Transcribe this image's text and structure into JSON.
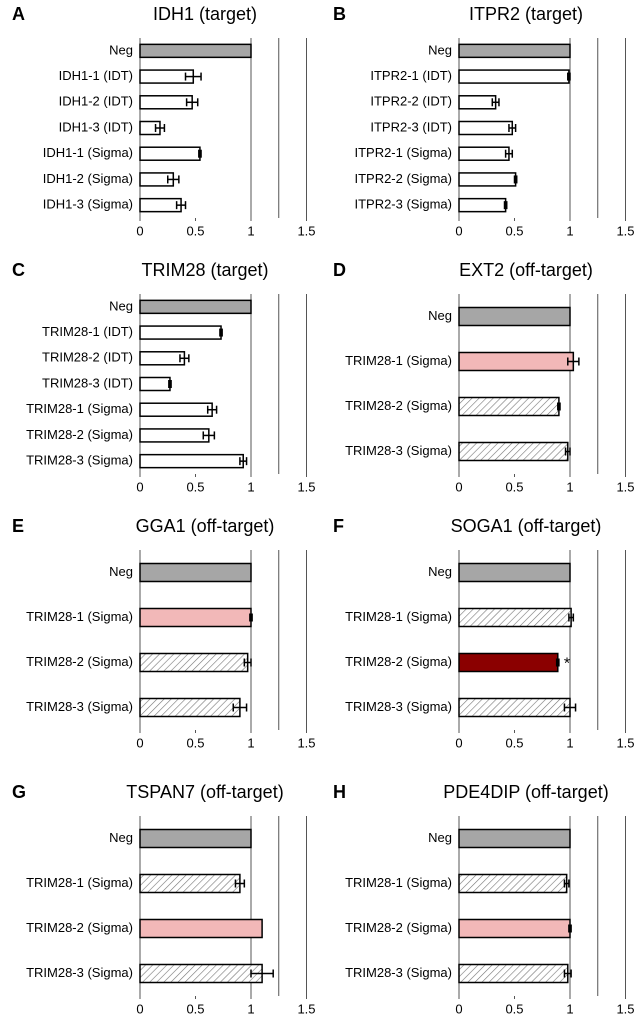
{
  "chart_data": [
    {
      "type": "bar",
      "label": "A",
      "title": "IDH1 (target)",
      "categories": [
        "Neg",
        "IDH1-1 (IDT)",
        "IDH1-2 (IDT)",
        "IDH1-3 (IDT)",
        "IDH1-1 (Sigma)",
        "IDH1-2 (Sigma)",
        "IDH1-3 (Sigma)"
      ],
      "values": [
        1,
        0.48,
        0.47,
        0.18,
        0.54,
        0.3,
        0.37
      ],
      "errors": [
        null,
        0.07,
        0.05,
        0.04,
        0.01,
        0.05,
        0.04
      ],
      "colors": [
        "#a6a6a6",
        "#ffffff",
        "#ffffff",
        "#ffffff",
        "#ffffff",
        "#ffffff",
        "#ffffff"
      ],
      "xlim": [
        0,
        1.5
      ],
      "xticks": [
        0,
        0.5,
        1,
        1.5
      ],
      "grid_lines": [
        1,
        1.25,
        1.5
      ]
    },
    {
      "type": "bar",
      "label": "B",
      "title": "ITPR2 (target)",
      "categories": [
        "Neg",
        "ITPR2-1 (IDT)",
        "ITPR2-2 (IDT)",
        "ITPR2-3 (IDT)",
        "ITPR2-1 (Sigma)",
        "ITPR2-2 (Sigma)",
        "ITPR2-3 (Sigma)"
      ],
      "values": [
        1,
        0.99,
        0.33,
        0.48,
        0.45,
        0.51,
        0.42
      ],
      "errors": [
        null,
        0.01,
        0.03,
        0.03,
        0.03,
        0.01,
        0.01
      ],
      "colors": [
        "#a6a6a6",
        "#ffffff",
        "#ffffff",
        "#ffffff",
        "#ffffff",
        "#ffffff",
        "#ffffff"
      ],
      "xlim": [
        0,
        1.5
      ],
      "xticks": [
        0,
        0.5,
        1,
        1.5
      ],
      "grid_lines": [
        1,
        1.25,
        1.5
      ]
    },
    {
      "type": "bar",
      "label": "C",
      "title": "TRIM28 (target)",
      "categories": [
        "Neg",
        "TRIM28-1 (IDT)",
        "TRIM28-2 (IDT)",
        "TRIM28-3 (IDT)",
        "TRIM28-1 (Sigma)",
        "TRIM28-2 (Sigma)",
        "TRIM28-3 (Sigma)"
      ],
      "values": [
        1,
        0.73,
        0.4,
        0.27,
        0.65,
        0.62,
        0.93
      ],
      "errors": [
        null,
        0.01,
        0.04,
        0.01,
        0.04,
        0.05,
        0.03
      ],
      "colors": [
        "#a6a6a6",
        "#ffffff",
        "#ffffff",
        "#ffffff",
        "#ffffff",
        "#ffffff",
        "#ffffff"
      ],
      "xlim": [
        0,
        1.5
      ],
      "xticks": [
        0,
        0.5,
        1,
        1.5
      ],
      "grid_lines": [
        1,
        1.25,
        1.5
      ]
    },
    {
      "type": "bar",
      "label": "D",
      "title": "EXT2 (off-target)",
      "categories": [
        "Neg",
        "TRIM28-1 (Sigma)",
        "TRIM28-2 (Sigma)",
        "TRIM28-3 (Sigma)"
      ],
      "values": [
        1,
        1.03,
        0.9,
        0.98
      ],
      "errors": [
        null,
        0.05,
        0.01,
        0.02
      ],
      "colors": [
        "#a6a6a6",
        "#f2b8b8",
        "hatch",
        "hatch"
      ],
      "xlim": [
        0,
        1.5
      ],
      "xticks": [
        0,
        0.5,
        1,
        1.5
      ],
      "grid_lines": [
        1,
        1.25,
        1.5
      ]
    },
    {
      "type": "bar",
      "label": "E",
      "title": "GGA1 (off-target)",
      "categories": [
        "Neg",
        "TRIM28-1 (Sigma)",
        "TRIM28-2 (Sigma)",
        "TRIM28-3 (Sigma)"
      ],
      "values": [
        1,
        1,
        0.97,
        0.9
      ],
      "errors": [
        null,
        0.01,
        0.03,
        0.06
      ],
      "colors": [
        "#a6a6a6",
        "#f2b8b8",
        "hatch",
        "hatch"
      ],
      "xlim": [
        0,
        1.5
      ],
      "xticks": [
        0,
        0.5,
        1,
        1.5
      ],
      "grid_lines": [
        1,
        1.25,
        1.5
      ]
    },
    {
      "type": "bar",
      "label": "F",
      "title": "SOGA1 (off-target)",
      "categories": [
        "Neg",
        "TRIM28-1 (Sigma)",
        "TRIM28-2 (Sigma)",
        "TRIM28-3 (Sigma)"
      ],
      "values": [
        1,
        1.01,
        0.89,
        1
      ],
      "errors": [
        null,
        0.02,
        0.01,
        0.05
      ],
      "colors": [
        "#a6a6a6",
        "hatch",
        "#8b0000",
        "hatch"
      ],
      "xlim": [
        0,
        1.5
      ],
      "xticks": [
        0,
        0.5,
        1,
        1.5
      ],
      "grid_lines": [
        1,
        1.25,
        1.5
      ],
      "annotations": [
        {
          "text": "*",
          "category": "TRIM28-2 (Sigma)"
        }
      ]
    },
    {
      "type": "bar",
      "label": "G",
      "title": "TSPAN7 (off-target)",
      "categories": [
        "Neg",
        "TRIM28-1 (Sigma)",
        "TRIM28-2 (Sigma)",
        "TRIM28-3 (Sigma)"
      ],
      "values": [
        1,
        0.9,
        1.1,
        1.1
      ],
      "errors": [
        null,
        0.04,
        null,
        0.1
      ],
      "colors": [
        "#a6a6a6",
        "hatch",
        "#f2b8b8",
        "hatch"
      ],
      "xlim": [
        0,
        1.5
      ],
      "xticks": [
        0,
        0.5,
        1,
        1.5
      ],
      "grid_lines": [
        1,
        1.25,
        1.5
      ]
    },
    {
      "type": "bar",
      "label": "H",
      "title": "PDE4DIP (off-target)",
      "categories": [
        "Neg",
        "TRIM28-1 (Sigma)",
        "TRIM28-2 (Sigma)",
        "TRIM28-3 (Sigma)"
      ],
      "values": [
        1,
        0.97,
        1,
        0.98
      ],
      "errors": [
        null,
        0.02,
        0.01,
        0.03
      ],
      "colors": [
        "#a6a6a6",
        "hatch",
        "#f2b8b8",
        "hatch"
      ],
      "xlim": [
        0,
        1.5
      ],
      "xticks": [
        0,
        0.5,
        1,
        1.5
      ],
      "grid_lines": [
        1,
        1.25,
        1.5
      ]
    }
  ]
}
